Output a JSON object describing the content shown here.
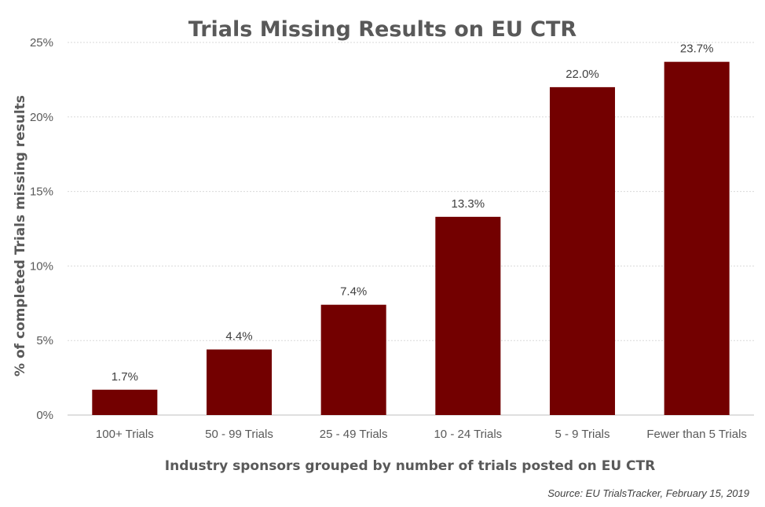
{
  "chart_data": {
    "type": "bar",
    "title": "Trials Missing Results on EU CTR",
    "categories": [
      "100+ Trials",
      "50 - 99 Trials",
      "25 - 49 Trials",
      "10 - 24 Trials",
      "5 - 9 Trials",
      "Fewer than 5 Trials"
    ],
    "values": [
      1.7,
      4.4,
      7.4,
      13.3,
      22.0,
      23.7
    ],
    "data_labels": [
      "1.7%",
      "4.4%",
      "7.4%",
      "13.3%",
      "22.0%",
      "23.7%"
    ],
    "xlabel": "Industry sponsors grouped by number of trials posted on EU CTR",
    "ylabel": "% of completed Trials missing results",
    "ylim": [
      0,
      25
    ],
    "yticks": [
      0,
      5,
      10,
      15,
      20,
      25
    ],
    "ytick_labels": [
      "0%",
      "5%",
      "10%",
      "15%",
      "20%",
      "25%"
    ],
    "grid": true,
    "legend": "none",
    "bar_color": "#730000"
  },
  "source_note": "Source:  EU TrialsTracker, February 15, 2019"
}
